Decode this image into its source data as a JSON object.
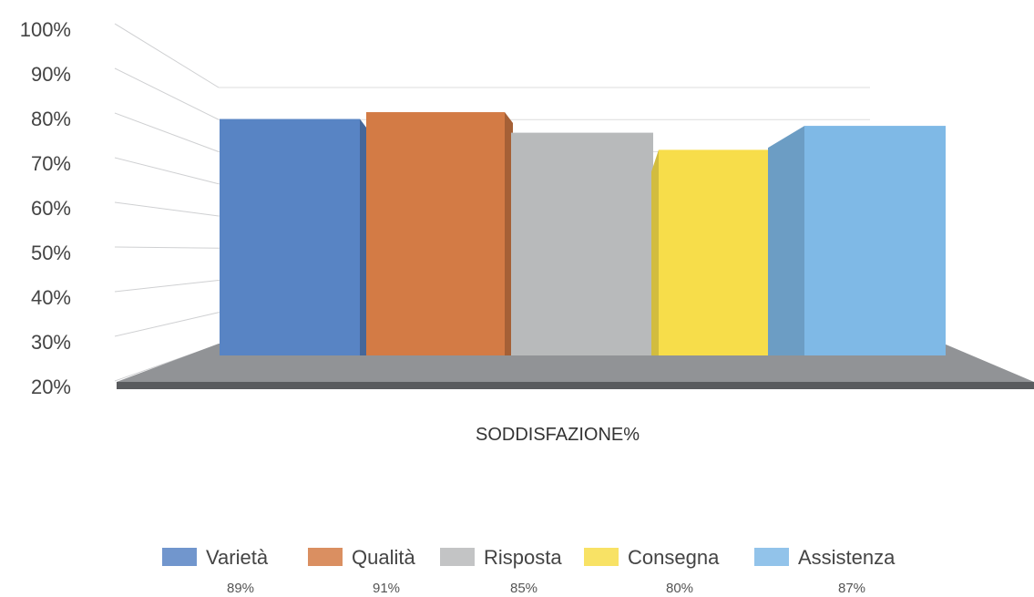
{
  "chart_data": {
    "type": "bar",
    "variant": "3d",
    "categories": [
      "Varietà",
      "Qualità",
      "Risposta",
      "Consegna",
      "Assistenza"
    ],
    "values": [
      89,
      91,
      85,
      80,
      87
    ],
    "value_labels": [
      "89%",
      "91%",
      "85%",
      "80%",
      "87%"
    ],
    "colors": [
      "#5884c4",
      "#d37b45",
      "#b8babb",
      "#f7dd4a",
      "#7fb9e6"
    ],
    "xlabel": "SODDISFAZIONE%",
    "ylabel": "",
    "ylim": [
      20,
      100
    ],
    "y_ticks": [
      "20%",
      "30%",
      "40%",
      "50%",
      "60%",
      "70%",
      "80%",
      "90%",
      "100%"
    ],
    "grid": true,
    "legend_position": "bottom"
  }
}
